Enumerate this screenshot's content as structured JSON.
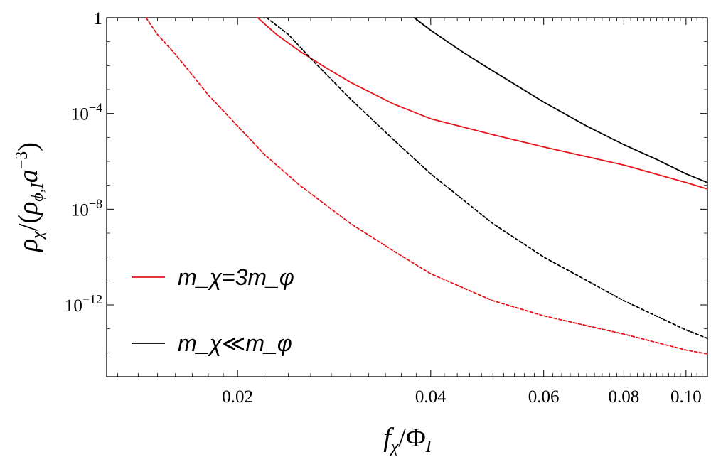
{
  "chart_data": {
    "type": "line",
    "xscale": "log",
    "yscale": "log",
    "xlim": [
      0.0125,
      0.108
    ],
    "ylim": [
      1e-15,
      1
    ],
    "xticks": [
      {
        "value": 0.02,
        "label": "0.02"
      },
      {
        "value": 0.04,
        "label": "0.04"
      },
      {
        "value": 0.06,
        "label": "0.06"
      },
      {
        "value": 0.08,
        "label": "0.08"
      },
      {
        "value": 0.1,
        "label": "0.10"
      }
    ],
    "yticks": [
      {
        "value": 1,
        "label": "1",
        "sup": ""
      },
      {
        "value": 0.0001,
        "label": "10",
        "sup": "−4"
      },
      {
        "value": 1e-08,
        "label": "10",
        "sup": "−8"
      },
      {
        "value": 1e-12,
        "label": "10",
        "sup": "−12"
      }
    ],
    "xlabel": "f_χ/Φ_I",
    "ylabel": "ρ_χ/(ρ_φ,I a^−3)",
    "legend": {
      "placement": "bottom-left",
      "entries": [
        {
          "label": "m_χ=3m_φ",
          "color": "#e8141b"
        },
        {
          "label": "m_χ≪m_φ",
          "color": "#000000"
        }
      ]
    },
    "series": [
      {
        "color": "#e8141b",
        "dash": "solid",
        "x": [
          0.0215,
          0.023,
          0.025,
          0.0275,
          0.03,
          0.035,
          0.04,
          0.05,
          0.06,
          0.08,
          0.1,
          0.108
        ],
        "y": [
          1,
          0.2,
          0.04,
          0.008,
          0.002,
          0.00025,
          6e-05,
          1.3e-05,
          4e-06,
          7e-07,
          1.3e-07,
          7e-08
        ]
      },
      {
        "color": "#e8141b",
        "dash": "dashed",
        "x": [
          0.0144,
          0.015,
          0.016,
          0.017,
          0.018,
          0.02,
          0.022,
          0.025,
          0.03,
          0.035,
          0.04,
          0.05,
          0.06,
          0.08,
          0.1,
          0.108
        ],
        "y": [
          1,
          0.2,
          0.03,
          0.004,
          0.0006,
          3e-05,
          2e-06,
          1e-07,
          2.5e-09,
          1.8e-10,
          2e-11,
          1.5e-12,
          3.5e-13,
          6e-14,
          1.3e-14,
          9e-15
        ]
      },
      {
        "color": "#000000",
        "dash": "dashed",
        "x": [
          0.0222,
          0.024,
          0.026,
          0.03,
          0.035,
          0.04,
          0.05,
          0.06,
          0.08,
          0.1,
          0.108
        ],
        "y": [
          1,
          0.2,
          0.02,
          0.0004,
          8e-06,
          3e-07,
          2.5e-09,
          1e-10,
          1.5e-12,
          9e-14,
          4e-14
        ]
      },
      {
        "color": "#000000",
        "dash": "solid",
        "x": [
          0.0377,
          0.04,
          0.045,
          0.05,
          0.06,
          0.07,
          0.08,
          0.09,
          0.1,
          0.108
        ],
        "y": [
          1,
          0.3,
          0.035,
          0.006,
          0.0003,
          3e-05,
          5e-06,
          1.2e-06,
          3e-07,
          1.3e-07
        ]
      }
    ]
  }
}
